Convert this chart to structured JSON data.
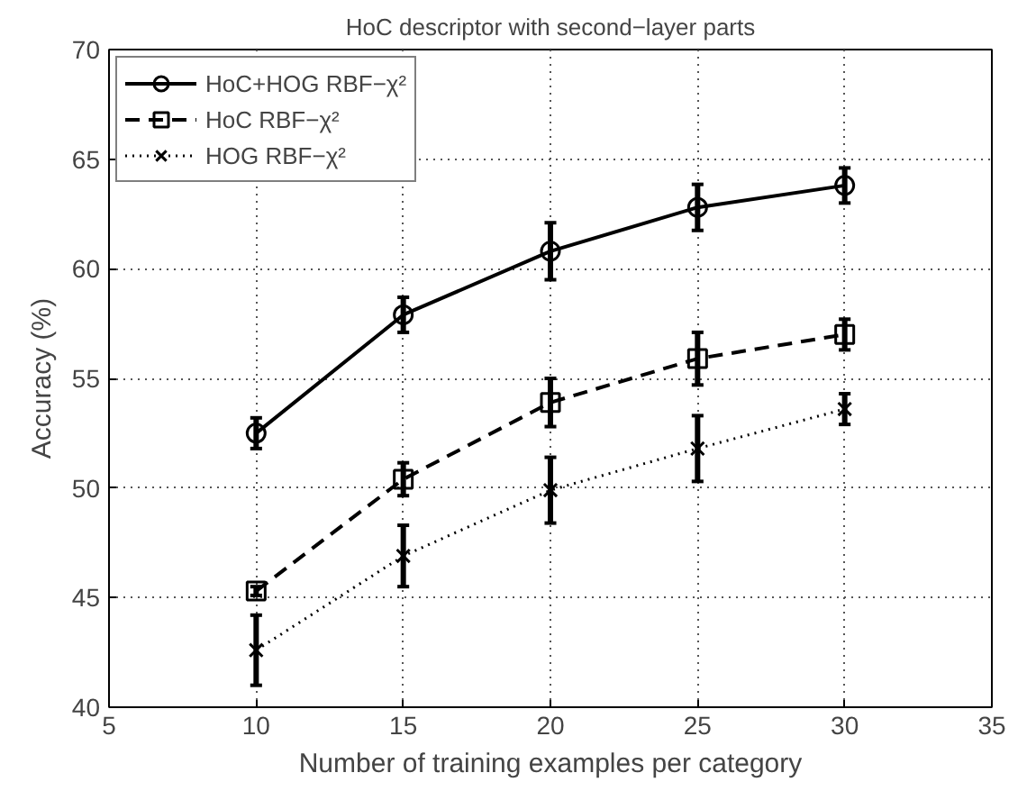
{
  "chart_data": {
    "type": "line",
    "title": "HoC descriptor with second−layer parts",
    "xlabel": "Number of training examples per category",
    "ylabel": "Accuracy (%)",
    "x": [
      10,
      15,
      20,
      25,
      30
    ],
    "series": [
      {
        "name": "HoC+HOG RBF−χ²",
        "color": "#000000",
        "marker": "circle",
        "line_style": "solid",
        "values": [
          52.5,
          57.9,
          60.8,
          62.8,
          63.8
        ],
        "errors": [
          0.7,
          0.8,
          1.3,
          1.05,
          0.8
        ]
      },
      {
        "name": "HoC RBF−χ²",
        "color": "#000000",
        "marker": "square",
        "line_style": "dashed",
        "values": [
          45.3,
          50.4,
          53.9,
          55.9,
          57.0
        ],
        "errors": [
          0.2,
          0.75,
          1.1,
          1.2,
          0.7
        ]
      },
      {
        "name": "HOG RBF−χ²",
        "color": "#000000",
        "marker": "cross",
        "line_style": "dotted",
        "values": [
          42.6,
          46.9,
          49.9,
          51.8,
          53.6
        ],
        "errors": [
          1.6,
          1.4,
          1.5,
          1.5,
          0.7
        ]
      }
    ],
    "xlim": [
      5,
      35
    ],
    "xticks": [
      5,
      10,
      15,
      20,
      25,
      30,
      35
    ],
    "ylim": [
      40,
      70
    ],
    "yticks": [
      40,
      45,
      50,
      55,
      60,
      65,
      70
    ],
    "grid": true,
    "legend": "top left"
  }
}
